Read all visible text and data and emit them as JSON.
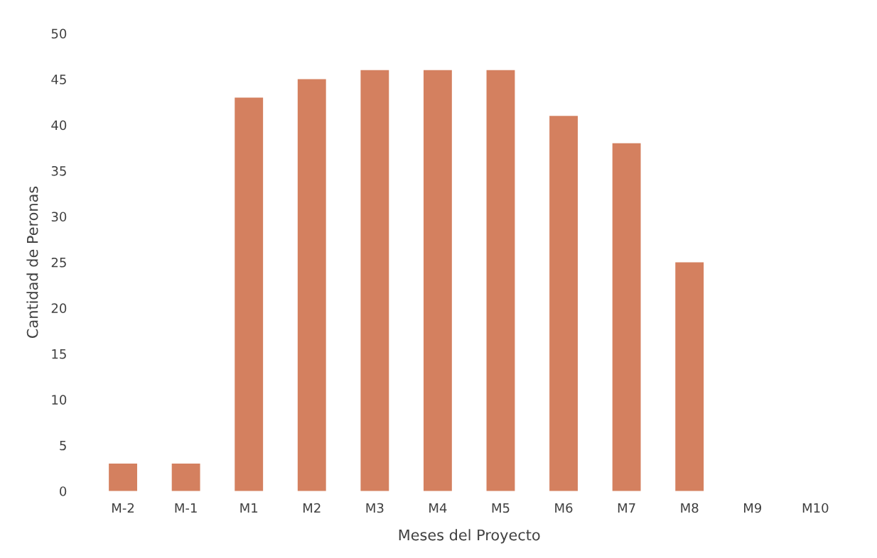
{
  "chart_data": {
    "type": "bar",
    "xlabel": "Meses del Proyecto",
    "ylabel": "Cantidad de Peronas",
    "categories": [
      "M-2",
      "M-1",
      "M1",
      "M2",
      "M3",
      "M4",
      "M5",
      "M6",
      "M7",
      "M8",
      "M9",
      "M10"
    ],
    "values": [
      3,
      3,
      43,
      45,
      46,
      46,
      46,
      41,
      38,
      25,
      0,
      0
    ],
    "color": "#d4805f",
    "ylim": [
      0,
      50
    ],
    "yticks": [
      0,
      5,
      10,
      15,
      20,
      25,
      30,
      35,
      40,
      45,
      50
    ],
    "grid": false,
    "legend": false
  }
}
